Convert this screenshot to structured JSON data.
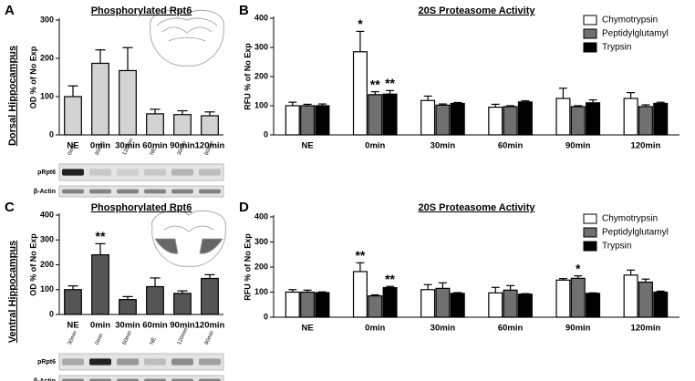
{
  "row_labels": [
    "Dorsal Hippocampus",
    "Ventral Hippocampus"
  ],
  "blots": [
    {
      "lanes": [
        "0min",
        "90min",
        "120min",
        "NE",
        "30min",
        "60min"
      ],
      "rows": [
        "pRpt6",
        "β-Actin"
      ]
    },
    {
      "lanes": [
        "30min",
        "0min",
        "60min",
        "NE",
        "120min",
        "90min"
      ],
      "rows": [
        "pRpt6",
        "β-Actin"
      ]
    }
  ],
  "chart_data": [
    {
      "type": "bar",
      "label": "A",
      "title": "Phosphorylated Rpt6",
      "ylabel": "OD % of No Exp",
      "categories": [
        "NE",
        "0min",
        "30min",
        "60min",
        "90min",
        "120min"
      ],
      "ylim": [
        0,
        300
      ],
      "yticks": [
        0,
        100,
        200,
        300
      ],
      "series": [
        {
          "color": "#d3d3d3",
          "values": [
            100,
            187,
            168,
            55,
            53,
            50
          ],
          "errors": [
            28,
            35,
            60,
            12,
            10,
            10
          ],
          "annotations": [
            null,
            null,
            null,
            null,
            null,
            null
          ]
        }
      ]
    },
    {
      "type": "bar",
      "label": "B",
      "title": "20S Proteasome Activity",
      "ylabel": "RFU % of No Exp",
      "categories": [
        "NE",
        "0min",
        "30min",
        "60min",
        "90min",
        "120min"
      ],
      "ylim": [
        0,
        400
      ],
      "yticks": [
        0,
        100,
        200,
        300,
        400
      ],
      "legend": "upper right",
      "series": [
        {
          "name": "Chymotrypsin",
          "color": "#ffffff",
          "values": [
            100,
            285,
            118,
            95,
            125,
            125
          ],
          "errors": [
            12,
            70,
            15,
            10,
            35,
            20
          ],
          "annotations": [
            null,
            "*",
            null,
            null,
            null,
            null
          ]
        },
        {
          "name": "Peptidylglutamyl",
          "color": "#707070",
          "values": [
            100,
            138,
            102,
            97,
            97,
            97
          ],
          "errors": [
            5,
            10,
            4,
            3,
            3,
            6
          ],
          "annotations": [
            null,
            "**",
            null,
            null,
            null,
            null
          ]
        },
        {
          "name": "Trypsin",
          "color": "#000000",
          "values": [
            100,
            140,
            108,
            113,
            110,
            108
          ],
          "errors": [
            6,
            12,
            3,
            4,
            10,
            4
          ],
          "annotations": [
            null,
            "**",
            null,
            null,
            null,
            null
          ]
        }
      ]
    },
    {
      "type": "bar",
      "label": "C",
      "title": "Phosphorylated Rpt6",
      "ylabel": "OD % of No Exp",
      "categories": [
        "NE",
        "0min",
        "30min",
        "60min",
        "90min",
        "120min"
      ],
      "ylim": [
        0,
        400
      ],
      "yticks": [
        0,
        100,
        200,
        300,
        400
      ],
      "series": [
        {
          "color": "#555555",
          "values": [
            100,
            240,
            60,
            112,
            85,
            145
          ],
          "errors": [
            15,
            45,
            12,
            35,
            10,
            15
          ],
          "annotations": [
            null,
            "**",
            null,
            null,
            null,
            null
          ]
        }
      ]
    },
    {
      "type": "bar",
      "label": "D",
      "title": "20S Proteasome Activity",
      "ylabel": "RFU % of No Exp",
      "categories": [
        "NE",
        "0min",
        "30min",
        "60min",
        "90min",
        "120min"
      ],
      "ylim": [
        0,
        400
      ],
      "yticks": [
        0,
        100,
        200,
        300,
        400
      ],
      "legend": "upper right",
      "series": [
        {
          "name": "Chymotrypsin",
          "color": "#ffffff",
          "values": [
            100,
            182,
            110,
            97,
            148,
            168
          ],
          "errors": [
            10,
            35,
            20,
            22,
            6,
            20
          ],
          "annotations": [
            null,
            "**",
            null,
            null,
            null,
            null
          ]
        },
        {
          "name": "Peptidylglutamyl",
          "color": "#707070",
          "values": [
            100,
            85,
            115,
            108,
            155,
            140
          ],
          "errors": [
            8,
            4,
            22,
            18,
            10,
            12
          ],
          "annotations": [
            null,
            null,
            null,
            null,
            "*",
            null
          ]
        },
        {
          "name": "Trypsin",
          "color": "#000000",
          "values": [
            98,
            118,
            95,
            92,
            95,
            100
          ],
          "errors": [
            3,
            5,
            3,
            2,
            2,
            4
          ],
          "annotations": [
            null,
            "**",
            null,
            null,
            null,
            null
          ]
        }
      ]
    }
  ]
}
